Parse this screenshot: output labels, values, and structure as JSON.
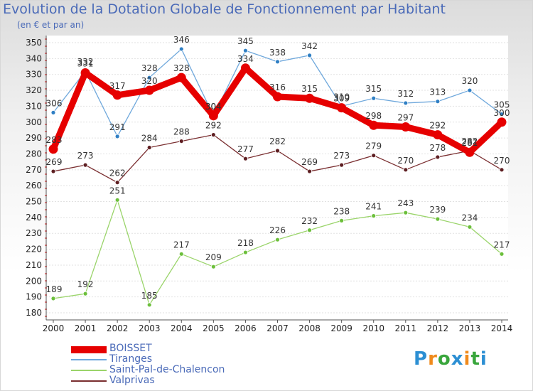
{
  "header": {
    "title": "Evolution de la Dotation Globale de Fonctionnement par Habitant",
    "subtitle": "(en € et par an)"
  },
  "logo": {
    "text": "Proxiti",
    "colors": [
      "#2c8fd3",
      "#f08a1c",
      "#39a63c",
      "#2c8fd3",
      "#f08a1c",
      "#39a63c",
      "#2c8fd3"
    ]
  },
  "chart_data": {
    "type": "line",
    "title": "Evolution de la Dotation Globale de Fonctionnement par Habitant",
    "subtitle": "(en € et par an)",
    "x": [
      "2000",
      "2001",
      "2002",
      "2003",
      "2004",
      "2005",
      "2006",
      "2007",
      "2008",
      "2009",
      "2010",
      "2011",
      "2012",
      "2013",
      "2014"
    ],
    "ylim": [
      180,
      350
    ],
    "yticks": [
      180,
      190,
      200,
      210,
      220,
      230,
      240,
      250,
      260,
      270,
      280,
      290,
      300,
      310,
      320,
      330,
      340,
      350
    ],
    "grid": "horizontal",
    "legend_position": "bottom-left",
    "series": [
      {
        "name": "Tiranges",
        "color": "#6fa8dc",
        "point_color": "#2f7fc4",
        "values": [
          306,
          332,
          291,
          328,
          346,
          304,
          345,
          338,
          342,
          310,
          315,
          312,
          313,
          320,
          305
        ]
      },
      {
        "name": "Saint-Pal-de-Chalencon",
        "color": "#9ad46a",
        "point_color": "#6cbf3b",
        "values": [
          189,
          192,
          251,
          185,
          217,
          209,
          218,
          226,
          232,
          238,
          241,
          243,
          239,
          234,
          217
        ]
      },
      {
        "name": "Valprivas",
        "color": "#7a2e30",
        "point_color": "#5e1f22",
        "values": [
          269,
          273,
          262,
          284,
          288,
          292,
          277,
          282,
          269,
          273,
          279,
          270,
          278,
          282,
          270
        ]
      },
      {
        "name": "BOISSET",
        "color": "#e60000",
        "point_color": "#e60000",
        "values": [
          283,
          331,
          317,
          320,
          328,
          304,
          334,
          316,
          315,
          309,
          298,
          297,
          292,
          281,
          300
        ]
      }
    ]
  }
}
